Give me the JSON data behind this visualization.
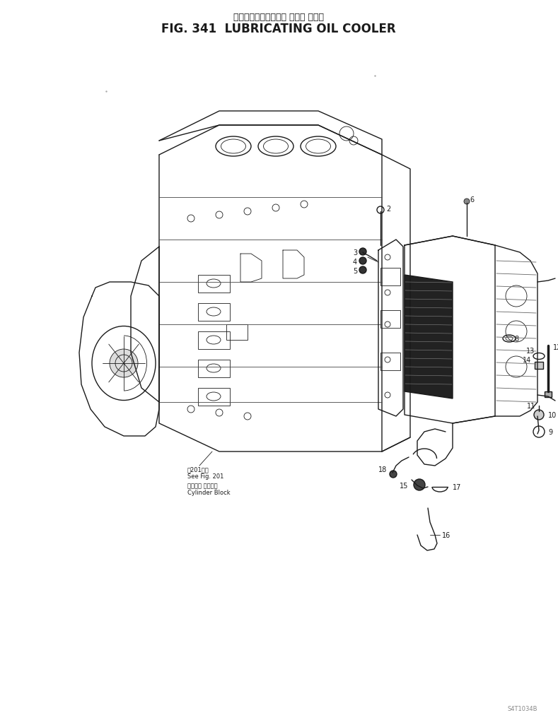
{
  "title_japanese": "ルーブリケーティング オイル クーラ",
  "title_english": "FIG. 341  LUBRICATING OIL COOLER",
  "background_color": "#ffffff",
  "line_color": "#1a1a1a",
  "title_fontsize": 12,
  "subtitle_fontsize": 9,
  "fig_width": 7.89,
  "fig_height": 10.2,
  "dpi": 100,
  "watermark": "S4T1034B",
  "annotation_text1": "図201参照",
  "annotation_text2": "See Fig. 201",
  "annotation_text3": "シリンダ ブロック",
  "annotation_text4": "Cylinder Block"
}
